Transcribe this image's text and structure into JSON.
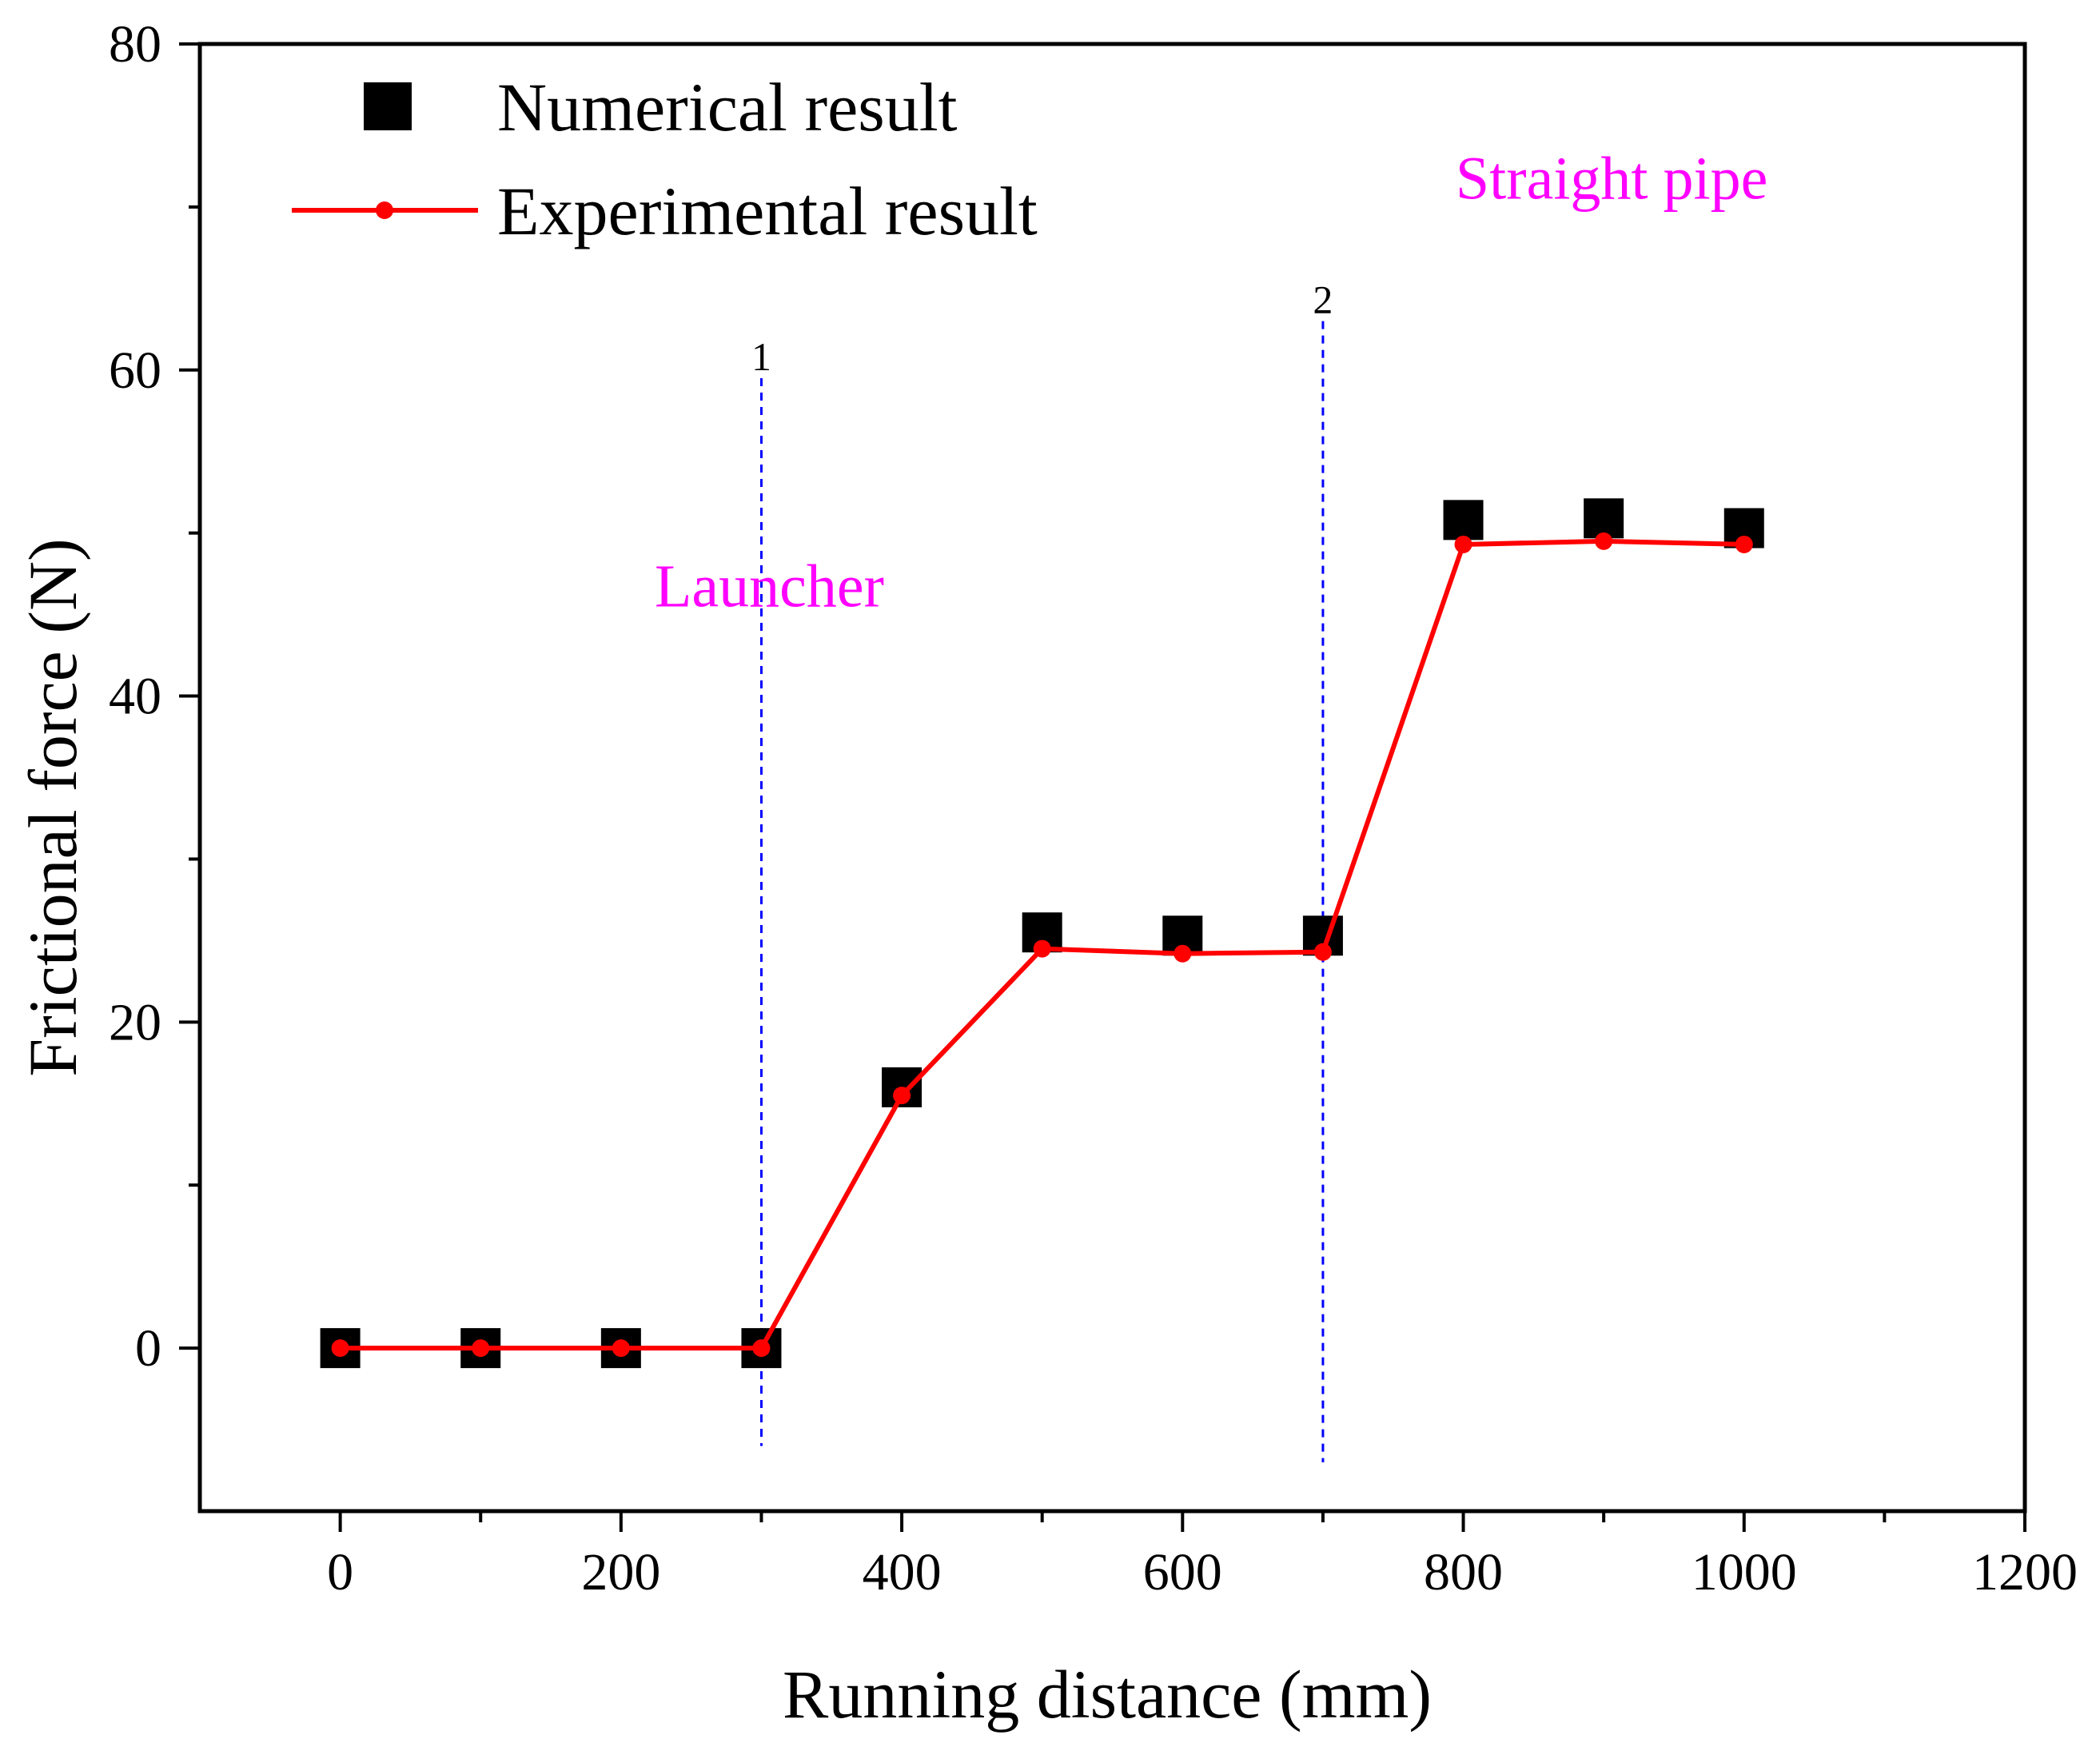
{
  "chart_data": {
    "type": "scatter",
    "xlabel": "Running distance (mm)",
    "ylabel": "Frictional force (N)",
    "xlim": [
      -100,
      1200
    ],
    "ylim": [
      -10,
      80
    ],
    "x_ticks": [
      0,
      200,
      400,
      600,
      800,
      1000,
      1200
    ],
    "x_minor_ticks": [
      100,
      300,
      500,
      700,
      900,
      1100
    ],
    "y_ticks": [
      0,
      20,
      40,
      60,
      80
    ],
    "y_minor_ticks": [
      10,
      30,
      50,
      70
    ],
    "series": [
      {
        "name": "Numerical result",
        "marker": "square",
        "color": "#000000",
        "x": [
          0,
          100,
          200,
          300,
          400,
          500,
          600,
          700,
          800,
          900,
          1000
        ],
        "y": [
          0,
          0,
          0,
          0,
          16,
          25.5,
          25.3,
          25.3,
          50.8,
          50.9,
          50.3
        ]
      },
      {
        "name": "Experimental result",
        "marker": "circle-line",
        "color": "#ff0000",
        "x": [
          0,
          100,
          200,
          300,
          400,
          500,
          600,
          700,
          800,
          900,
          1000
        ],
        "y": [
          0,
          0,
          0,
          0,
          15.5,
          24.5,
          24.2,
          24.3,
          49.3,
          49.5,
          49.3
        ]
      }
    ],
    "vertical_markers": [
      {
        "label": "1",
        "x": 300,
        "y_top": 59.5,
        "y_bottom": -6,
        "color": "#0000ff"
      },
      {
        "label": "2",
        "x": 700,
        "y_top": 63,
        "y_bottom": -7,
        "color": "#0000ff"
      }
    ],
    "annotations": [
      {
        "text": "Launcher",
        "x": 300,
        "y": 45.5,
        "color": "#ff00ff"
      },
      {
        "text": "Straight pipe",
        "x": 900,
        "y": 70.5,
        "color": "#ff00ff"
      }
    ],
    "legend": {
      "position": "top-left"
    }
  }
}
